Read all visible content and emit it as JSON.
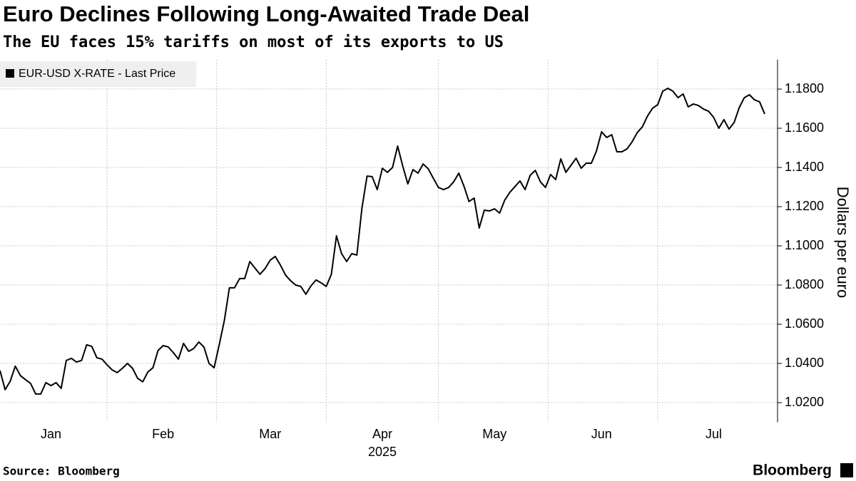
{
  "chart_data": {
    "type": "line",
    "title": "Euro Declines Following Long-Awaited Trade Deal",
    "subtitle": "The EU faces 15% tariffs on most of its exports to US",
    "ylabel": "Dollars per euro",
    "xlabel": "2025",
    "source": "Source: Bloomberg",
    "brand": "Bloomberg",
    "legend": "top-left",
    "grid": true,
    "ylim": [
      1.01,
      1.195
    ],
    "yticks": [
      {
        "value": 1.02,
        "label": "1.0200"
      },
      {
        "value": 1.04,
        "label": "1.0400"
      },
      {
        "value": 1.06,
        "label": "1.0600"
      },
      {
        "value": 1.08,
        "label": "1.0800"
      },
      {
        "value": 1.1,
        "label": "1.1000"
      },
      {
        "value": 1.12,
        "label": "1.1200"
      },
      {
        "value": 1.14,
        "label": "1.1400"
      },
      {
        "value": 1.16,
        "label": "1.1600"
      },
      {
        "value": 1.18,
        "label": "1.1800"
      }
    ],
    "categories": [
      null,
      null,
      null,
      null,
      null,
      null,
      null,
      null,
      null,
      null,
      "Jan",
      null,
      null,
      null,
      null,
      null,
      null,
      null,
      null,
      null,
      null,
      null,
      null,
      null,
      null,
      null,
      null,
      null,
      null,
      null,
      null,
      null,
      "Feb",
      null,
      null,
      null,
      null,
      null,
      null,
      null,
      null,
      null,
      null,
      null,
      null,
      null,
      null,
      null,
      null,
      null,
      null,
      null,
      null,
      "Mar",
      null,
      null,
      null,
      null,
      null,
      null,
      null,
      null,
      null,
      null,
      null,
      null,
      null,
      null,
      null,
      null,
      null,
      null,
      null,
      null,
      null,
      "Apr",
      null,
      null,
      null,
      null,
      null,
      null,
      null,
      null,
      null,
      null,
      null,
      null,
      null,
      null,
      null,
      null,
      null,
      null,
      null,
      null,
      null,
      "May",
      null,
      null,
      null,
      null,
      null,
      null,
      null,
      null,
      null,
      null,
      null,
      null,
      null,
      null,
      null,
      null,
      null,
      null,
      null,
      null,
      "Jun",
      null,
      null,
      null,
      null,
      null,
      null,
      null,
      null,
      null,
      null,
      null,
      null,
      null,
      null,
      null,
      null,
      null,
      null,
      null,
      null,
      null,
      "Jul",
      null,
      null,
      null,
      null,
      null,
      null,
      null,
      null,
      null,
      null
    ],
    "series": [
      {
        "name": "EUR-USD X-RATE - Last Price",
        "color": "#000000",
        "values": [
          1.0364,
          1.0266,
          1.0309,
          1.0386,
          1.0338,
          1.0317,
          1.0298,
          1.0244,
          1.0244,
          1.0302,
          1.0287,
          1.0302,
          1.0273,
          1.0415,
          1.0426,
          1.0407,
          1.0415,
          1.0495,
          1.0487,
          1.0429,
          1.0422,
          1.0393,
          1.0367,
          1.0353,
          1.0375,
          1.04,
          1.0375,
          1.0324,
          1.0306,
          1.0356,
          1.0378,
          1.0466,
          1.0491,
          1.0484,
          1.0455,
          1.0422,
          1.0502,
          1.0462,
          1.0476,
          1.0509,
          1.0484,
          1.04,
          1.0378,
          1.0495,
          1.0618,
          1.0786,
          1.0786,
          1.0833,
          1.0833,
          1.092,
          1.0887,
          1.0855,
          1.0884,
          1.0927,
          1.0946,
          1.0902,
          1.0851,
          1.0822,
          1.08,
          1.0793,
          1.0753,
          1.0796,
          1.0826,
          1.0811,
          1.0793,
          1.0855,
          1.1051,
          1.096,
          1.092,
          1.096,
          1.0953,
          1.1193,
          1.1356,
          1.1353,
          1.1287,
          1.1396,
          1.1375,
          1.14,
          1.1509,
          1.1407,
          1.1316,
          1.1389,
          1.1371,
          1.1418,
          1.1393,
          1.1345,
          1.1298,
          1.1287,
          1.1298,
          1.1327,
          1.1371,
          1.1305,
          1.1226,
          1.1244,
          1.1091,
          1.1182,
          1.1178,
          1.1189,
          1.1167,
          1.1233,
          1.1273,
          1.1302,
          1.1331,
          1.1287,
          1.136,
          1.1385,
          1.1327,
          1.1298,
          1.1364,
          1.1338,
          1.1444,
          1.1375,
          1.1411,
          1.1447,
          1.1396,
          1.1422,
          1.1422,
          1.1484,
          1.1582,
          1.1553,
          1.1567,
          1.148,
          1.148,
          1.1495,
          1.1531,
          1.1578,
          1.1607,
          1.1662,
          1.1702,
          1.172,
          1.1789,
          1.1804,
          1.1789,
          1.1756,
          1.1775,
          1.1709,
          1.1724,
          1.1716,
          1.1698,
          1.1687,
          1.1655,
          1.16,
          1.1644,
          1.1596,
          1.1629,
          1.1705,
          1.1756,
          1.1771,
          1.1745,
          1.1735,
          1.1673
        ]
      }
    ]
  }
}
